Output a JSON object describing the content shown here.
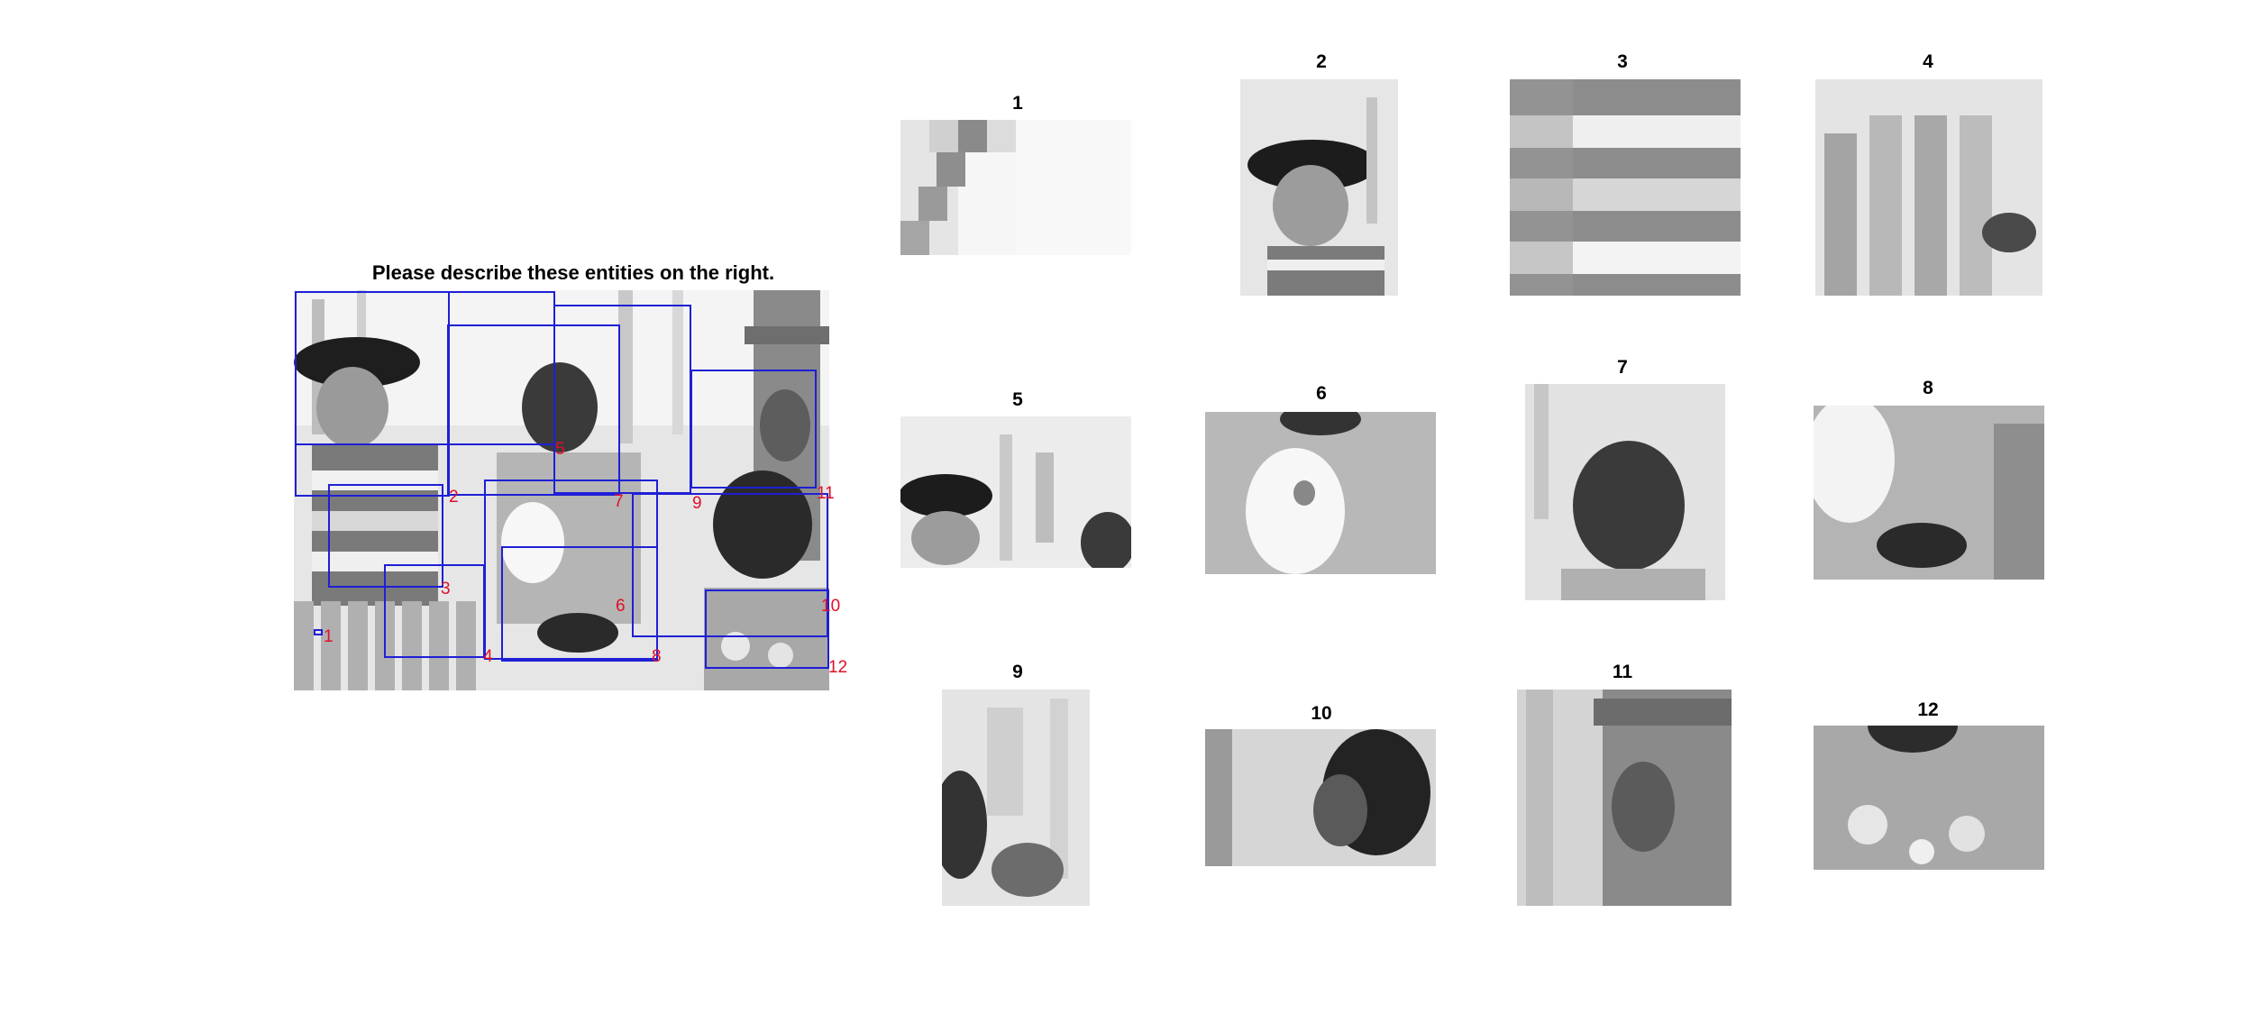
{
  "header": {
    "prompt": "Please describe these entities on the right."
  },
  "regions": [
    {
      "label": "1"
    },
    {
      "label": "2"
    },
    {
      "label": "3"
    },
    {
      "label": "4"
    },
    {
      "label": "5"
    },
    {
      "label": "6"
    },
    {
      "label": "7"
    },
    {
      "label": "8"
    },
    {
      "label": "9"
    },
    {
      "label": "10"
    },
    {
      "label": "11"
    },
    {
      "label": "12"
    }
  ],
  "panels": [
    {
      "title": "1"
    },
    {
      "title": "2"
    },
    {
      "title": "3"
    },
    {
      "title": "4"
    },
    {
      "title": "5"
    },
    {
      "title": "6"
    },
    {
      "title": "7"
    },
    {
      "title": "8"
    },
    {
      "title": "9"
    },
    {
      "title": "10"
    },
    {
      "title": "11"
    },
    {
      "title": "12"
    }
  ],
  "colors": {
    "box": "#1f1fd6",
    "box_label": "#e0102a"
  }
}
